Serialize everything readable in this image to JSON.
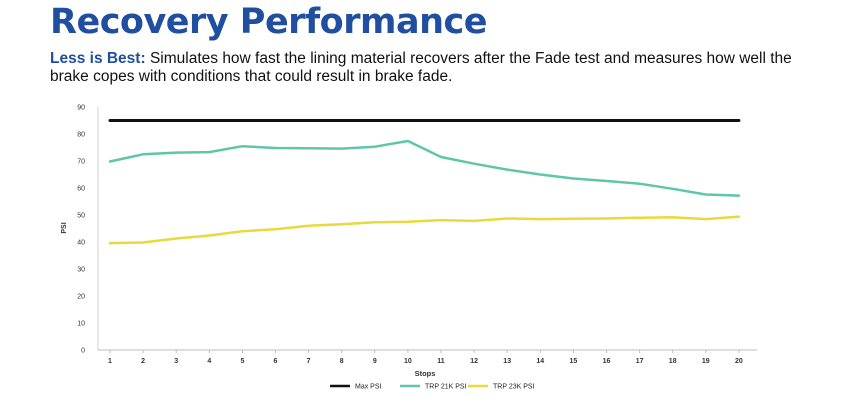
{
  "header": {
    "title": "Recovery Performance",
    "subtitle_lead": "Less is Best:",
    "subtitle_text": "Simulates how fast the lining material recovers after the Fade test and measures how well the brake copes with conditions that could result in brake fade."
  },
  "chart_data": {
    "type": "line",
    "title": "",
    "xlabel": "Stops",
    "ylabel": "PSI",
    "x": [
      1,
      2,
      3,
      4,
      5,
      6,
      7,
      8,
      9,
      10,
      11,
      12,
      13,
      14,
      15,
      16,
      17,
      18,
      19,
      20
    ],
    "ylim": [
      0,
      90
    ],
    "yticks": [
      0,
      10,
      20,
      30,
      40,
      50,
      60,
      70,
      80,
      90
    ],
    "grid": false,
    "legend": "bottom",
    "series": [
      {
        "name": "Max PSI",
        "color": "#111111",
        "values": [
          85,
          85,
          85,
          85,
          85,
          85,
          85,
          85,
          85,
          85,
          85,
          85,
          85,
          85,
          85,
          85,
          85,
          85,
          85,
          85
        ]
      },
      {
        "name": "TRP 21K PSI",
        "color": "#5fc6a8",
        "values": [
          69.8,
          72.5,
          73.1,
          73.3,
          75.5,
          74.8,
          74.7,
          74.6,
          75.3,
          77.4,
          71.5,
          69.0,
          66.8,
          65.0,
          63.5,
          62.6,
          61.6,
          59.7,
          57.6,
          57.2
        ]
      },
      {
        "name": "TRP 23K PSI",
        "color": "#e8da3c",
        "values": [
          39.6,
          39.8,
          41.3,
          42.4,
          44.0,
          44.7,
          46.0,
          46.6,
          47.3,
          47.5,
          48.1,
          47.8,
          48.7,
          48.5,
          48.6,
          48.7,
          49.0,
          49.2,
          48.5,
          49.4
        ]
      }
    ]
  }
}
